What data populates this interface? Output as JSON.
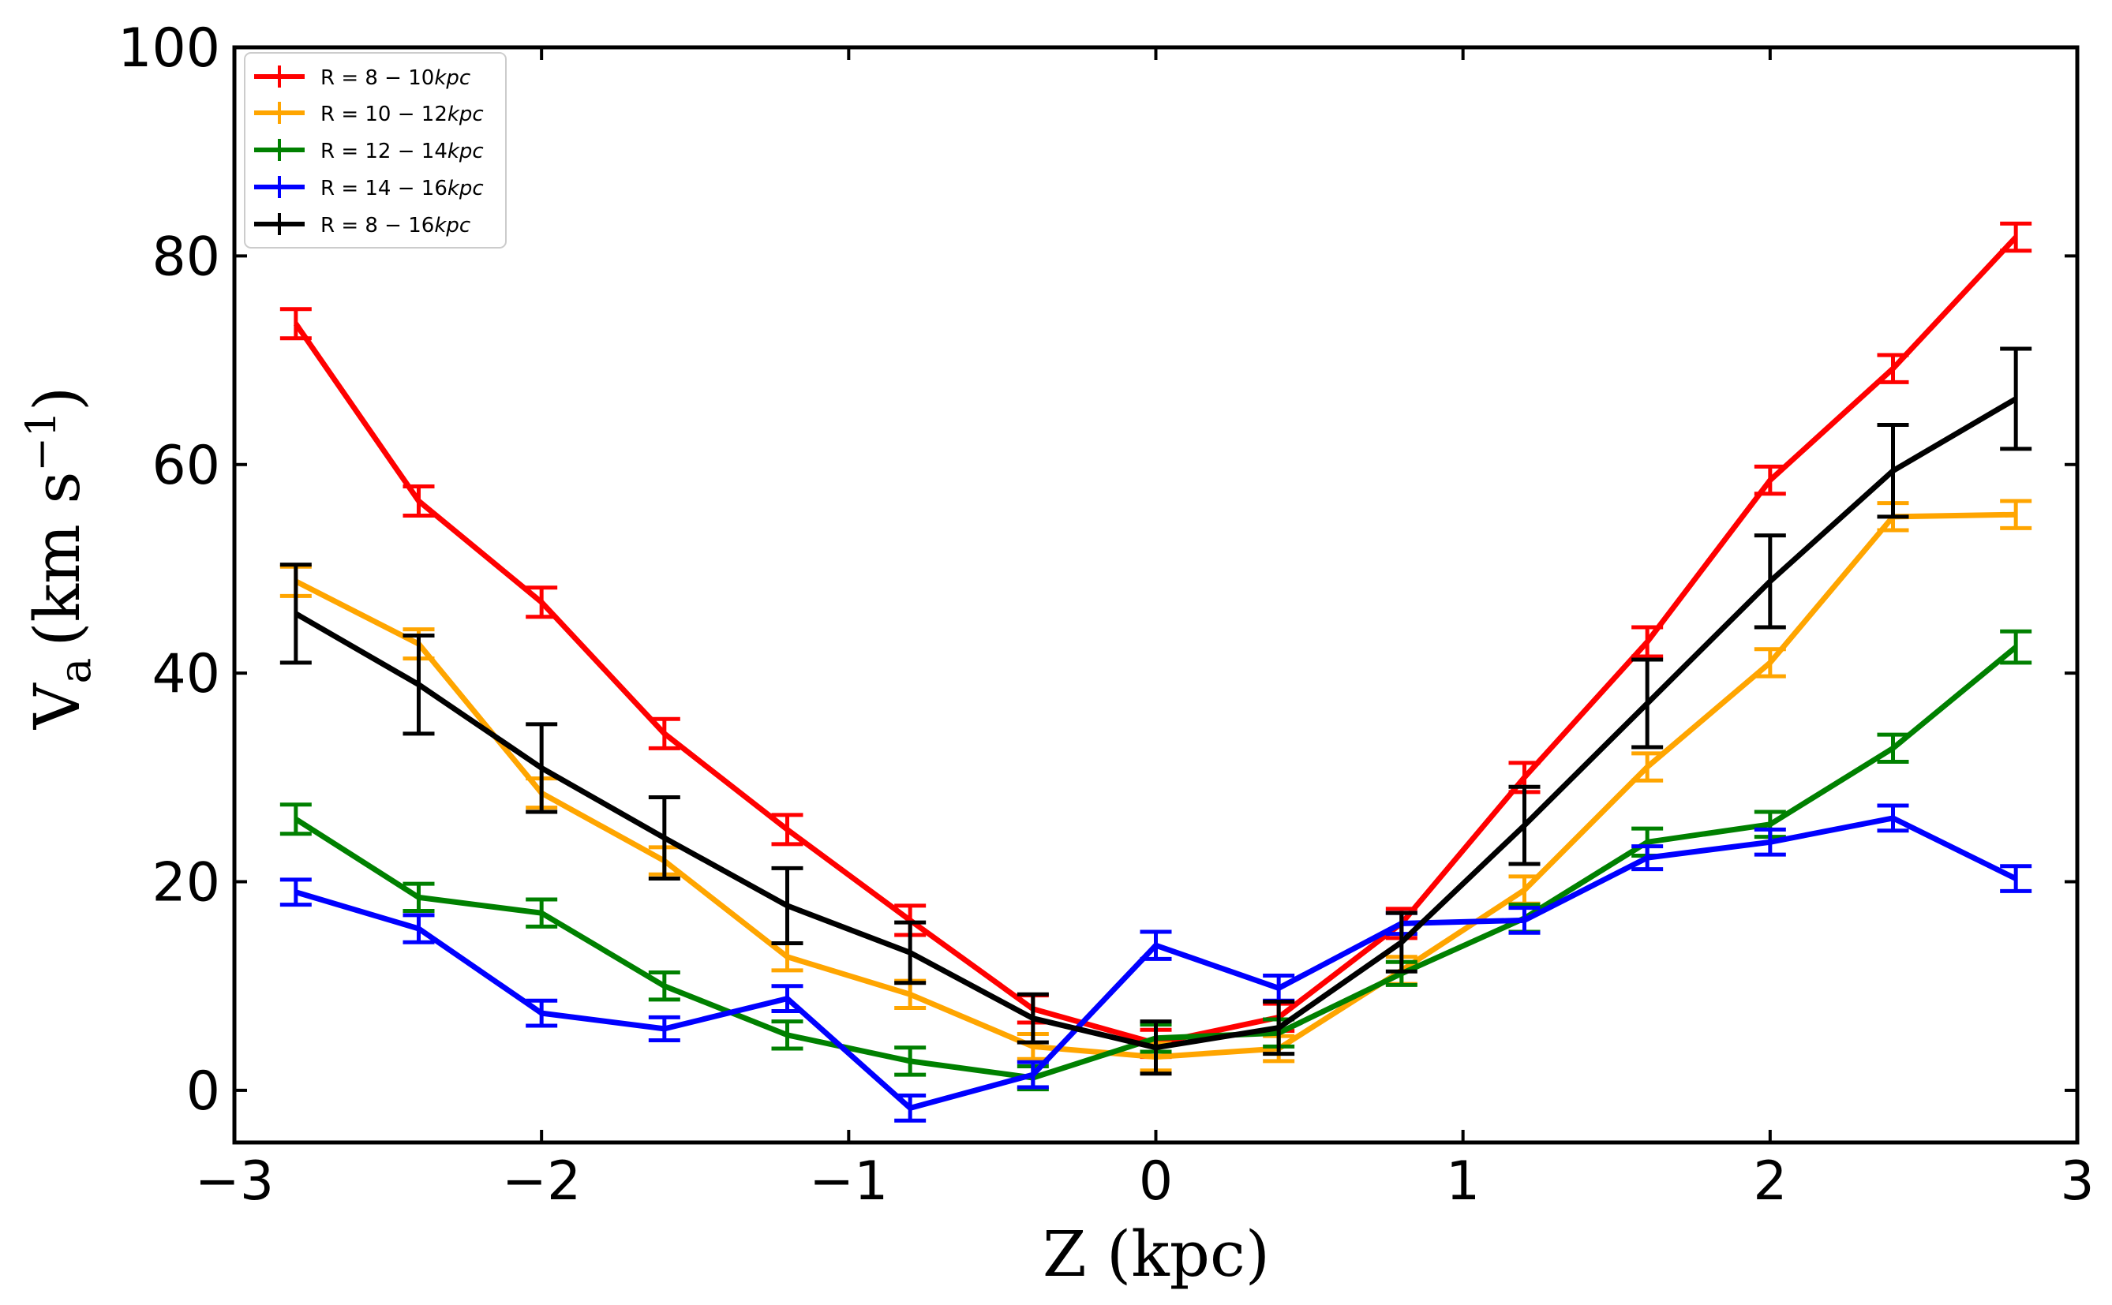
{
  "chart_data": {
    "type": "line",
    "title": "",
    "xlabel": "Z (kpc)",
    "ylabel": {
      "main": "V",
      "sub": "a",
      "unit": "(km s",
      "sup": "−1",
      "close": ")"
    },
    "xlim": [
      -3,
      3
    ],
    "ylim": [
      -5,
      100
    ],
    "xticks": [
      -3,
      -2,
      -1,
      0,
      1,
      2,
      3
    ],
    "xtick_labels": [
      "−3",
      "−2",
      "−1",
      "0",
      "1",
      "2",
      "3"
    ],
    "yticks": [
      0,
      20,
      40,
      60,
      80,
      100
    ],
    "ytick_labels": [
      "0",
      "20",
      "40",
      "60",
      "80",
      "100"
    ],
    "grid": false,
    "legend_position": "top-left",
    "x": [
      -2.8,
      -2.4,
      -2.0,
      -1.6,
      -1.2,
      -0.8,
      -0.4,
      0.0,
      0.4,
      0.8,
      1.2,
      1.6,
      2.0,
      2.4,
      2.8
    ],
    "series": [
      {
        "name": "R = 8−10kpc",
        "label_prefix": "R = 8 − 10",
        "label_unit": "kpc",
        "color": "#ff0000",
        "values": [
          73.5,
          56.5,
          46.8,
          34.2,
          25.0,
          16.3,
          7.8,
          4.5,
          7.0,
          16.0,
          30.0,
          43.0,
          58.5,
          69.2,
          81.8
        ],
        "errors": [
          1.4,
          1.4,
          1.4,
          1.4,
          1.4,
          1.4,
          1.3,
          1.3,
          1.3,
          1.4,
          1.4,
          1.4,
          1.3,
          1.3,
          1.3
        ]
      },
      {
        "name": "R = 10−12kpc",
        "label_prefix": "R = 10 − 12",
        "label_unit": "kpc",
        "color": "#ffa500",
        "values": [
          48.8,
          42.8,
          28.5,
          22.0,
          12.8,
          9.2,
          4.2,
          3.2,
          4.0,
          11.5,
          19.2,
          31.0,
          41.0,
          55.0,
          55.2
        ],
        "errors": [
          1.4,
          1.4,
          1.4,
          1.3,
          1.3,
          1.3,
          1.2,
          1.3,
          1.2,
          1.3,
          1.3,
          1.3,
          1.3,
          1.3,
          1.3
        ]
      },
      {
        "name": "R = 12−14kpc",
        "label_prefix": "R = 12 − 14",
        "label_unit": "kpc",
        "color": "#008000",
        "values": [
          26.0,
          18.5,
          17.0,
          10.0,
          5.3,
          2.8,
          1.2,
          5.0,
          5.5,
          11.2,
          16.5,
          23.8,
          25.5,
          32.8,
          42.5
        ],
        "errors": [
          1.4,
          1.3,
          1.3,
          1.3,
          1.3,
          1.3,
          1.1,
          1.3,
          1.3,
          1.1,
          1.3,
          1.3,
          1.2,
          1.3,
          1.5
        ]
      },
      {
        "name": "R = 14−16kpc",
        "label_prefix": "R = 14 − 16",
        "label_unit": "kpc",
        "color": "#0000ff",
        "values": [
          19.0,
          15.5,
          7.4,
          5.9,
          8.8,
          -1.7,
          1.5,
          13.9,
          9.8,
          16.0,
          16.3,
          22.3,
          23.8,
          26.1,
          20.3
        ],
        "errors": [
          1.2,
          1.3,
          1.2,
          1.1,
          1.2,
          1.2,
          1.2,
          1.3,
          1.2,
          1.0,
          1.2,
          1.1,
          1.2,
          1.2,
          1.2
        ]
      },
      {
        "name": "R = 8−16kpc",
        "label_prefix": "R = 8 − 16",
        "label_unit": "kpc",
        "color": "#000000",
        "values": [
          45.7,
          38.9,
          30.9,
          24.2,
          17.7,
          13.2,
          6.9,
          4.1,
          6.0,
          14.2,
          25.4,
          37.1,
          48.8,
          59.4,
          66.3
        ],
        "errors": [
          4.7,
          4.7,
          4.2,
          3.9,
          3.6,
          2.9,
          2.3,
          2.5,
          2.5,
          2.8,
          3.7,
          4.2,
          4.4,
          4.4,
          4.8
        ]
      }
    ]
  }
}
